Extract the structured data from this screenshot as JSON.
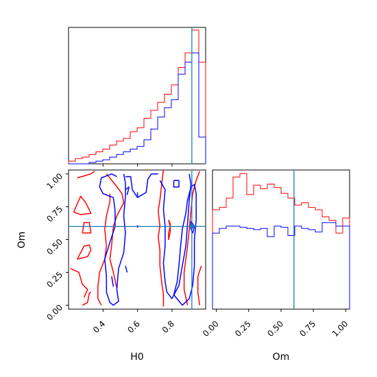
{
  "chart_data": {
    "type": "corner",
    "parameters": [
      "H0",
      "Om"
    ],
    "truth": {
      "H0": 0.915,
      "Om": 0.6,
      "color": "#1f77b4"
    },
    "series_colors": [
      "#ff0000",
      "#0000ff"
    ],
    "hist_H0": {
      "x_range": [
        0.2,
        0.995
      ],
      "bins": 20,
      "series": [
        {
          "color": "#ff0000",
          "values": [
            0.02,
            0.04,
            0.05,
            0.07,
            0.09,
            0.11,
            0.14,
            0.17,
            0.19,
            0.24,
            0.27,
            0.34,
            0.4,
            0.46,
            0.52,
            0.59,
            0.72,
            0.83,
            1.0,
            0.76
          ]
        },
        {
          "color": "#0000ff",
          "values": [
            0.0,
            0.0,
            0.0,
            0.01,
            0.02,
            0.03,
            0.05,
            0.07,
            0.09,
            0.11,
            0.13,
            0.18,
            0.26,
            0.35,
            0.42,
            0.48,
            0.67,
            0.76,
            0.83,
            0.2
          ]
        }
      ]
    },
    "hist_Om": {
      "x_range": [
        -0.03,
        1.03
      ],
      "bins": 20,
      "series": [
        {
          "color": "#ff0000",
          "values": [
            0.85,
            0.87,
            0.95,
            1.13,
            1.16,
            0.98,
            1.06,
            1.03,
            1.07,
            1.04,
            0.99,
            0.95,
            0.89,
            0.91,
            0.87,
            0.85,
            0.79,
            0.76,
            0.65,
            0.78
          ]
        },
        {
          "color": "#0000ff",
          "values": [
            0.65,
            0.69,
            0.71,
            0.71,
            0.7,
            0.69,
            0.68,
            0.69,
            0.62,
            0.71,
            0.7,
            0.63,
            0.71,
            0.69,
            0.68,
            0.66,
            0.74,
            0.74,
            0.71,
            0.71
          ]
        }
      ]
    },
    "contour": {
      "x_range": [
        0.2,
        0.995
      ],
      "y_range": [
        -0.03,
        1.03
      ],
      "series": [
        {
          "color": "#ff0000",
          "paths": [
            [
              [
                0.25,
                0.35
              ],
              [
                0.31,
                0.37
              ],
              [
                0.33,
                0.42
              ],
              [
                0.32,
                0.46
              ],
              [
                0.29,
                0.45
              ],
              [
                0.27,
                0.4
              ],
              [
                0.25,
                0.35
              ]
            ],
            [
              [
                0.28,
                0.55
              ],
              [
                0.33,
                0.55
              ],
              [
                0.32,
                0.63
              ],
              [
                0.29,
                0.63
              ],
              [
                0.28,
                0.55
              ]
            ],
            [
              [
                0.23,
                0.71
              ],
              [
                0.27,
                0.69
              ],
              [
                0.33,
                0.7
              ],
              [
                0.3,
                0.78
              ],
              [
                0.27,
                0.83
              ],
              [
                0.23,
                0.71
              ]
            ],
            [
              [
                0.25,
                0.97
              ],
              [
                0.33,
                1.0
              ],
              [
                0.35,
                1.02
              ]
            ],
            [
              [
                0.21,
                0.28
              ],
              [
                0.26,
                0.25
              ],
              [
                0.28,
                0.16
              ],
              [
                0.31,
                0.12
              ],
              [
                0.29,
                0.06
              ]
            ],
            [
              [
                0.28,
                0.0
              ],
              [
                0.31,
                0.02
              ],
              [
                0.32,
                0.09
              ],
              [
                0.33,
                0.1
              ]
            ],
            [
              [
                0.39,
                0.0
              ],
              [
                0.37,
                0.05
              ],
              [
                0.37,
                0.14
              ],
              [
                0.38,
                0.25
              ],
              [
                0.41,
                0.35
              ],
              [
                0.42,
                0.45
              ],
              [
                0.41,
                0.58
              ],
              [
                0.42,
                0.68
              ],
              [
                0.44,
                0.79
              ],
              [
                0.44,
                0.85
              ]
            ],
            [
              [
                0.42,
                1.0
              ],
              [
                0.47,
                0.92
              ],
              [
                0.51,
                0.85
              ],
              [
                0.52,
                0.78
              ],
              [
                0.48,
                0.68
              ],
              [
                0.46,
                0.6
              ],
              [
                0.45,
                0.46
              ],
              [
                0.44,
                0.35
              ],
              [
                0.46,
                0.25
              ],
              [
                0.48,
                0.13
              ]
            ],
            [
              [
                0.75,
                1.03
              ],
              [
                0.74,
                0.92
              ],
              [
                0.73,
                0.8
              ],
              [
                0.72,
                0.72
              ],
              [
                0.73,
                0.6
              ],
              [
                0.72,
                0.52
              ],
              [
                0.73,
                0.42
              ],
              [
                0.73,
                0.3
              ],
              [
                0.74,
                0.18
              ],
              [
                0.75,
                0.08
              ],
              [
                0.75,
                -0.01
              ]
            ],
            [
              [
                0.78,
                0.65
              ],
              [
                0.79,
                0.6
              ],
              [
                0.78,
                0.55
              ],
              [
                0.78,
                0.5
              ],
              [
                0.79,
                0.56
              ],
              [
                0.79,
                0.62
              ],
              [
                0.78,
                0.65
              ]
            ],
            [
              [
                0.96,
                1.02
              ],
              [
                0.94,
                0.95
              ],
              [
                0.92,
                0.85
              ],
              [
                0.91,
                0.72
              ],
              [
                0.9,
                0.58
              ],
              [
                0.89,
                0.45
              ],
              [
                0.88,
                0.35
              ],
              [
                0.87,
                0.25
              ],
              [
                0.87,
                0.12
              ],
              [
                0.89,
                0.0
              ]
            ],
            [
              [
                0.97,
                0.3
              ],
              [
                0.95,
                0.22
              ],
              [
                0.95,
                0.1
              ],
              [
                0.96,
                0.0
              ]
            ]
          ]
        },
        {
          "color": "#0000ff",
          "paths": [
            [
              [
                0.48,
                0.98
              ],
              [
                0.45,
                1.0
              ],
              [
                0.39,
                0.97
              ],
              [
                0.38,
                0.9
              ],
              [
                0.4,
                0.85
              ],
              [
                0.46,
                0.82
              ],
              [
                0.47,
                0.72
              ],
              [
                0.47,
                0.6
              ],
              [
                0.44,
                0.48
              ],
              [
                0.41,
                0.35
              ],
              [
                0.42,
                0.22
              ],
              [
                0.42,
                0.1
              ],
              [
                0.44,
                0.02
              ],
              [
                0.46,
                0.0
              ],
              [
                0.49,
                0.03
              ],
              [
                0.48,
                0.12
              ],
              [
                0.49,
                0.28
              ],
              [
                0.52,
                0.4
              ],
              [
                0.53,
                0.55
              ],
              [
                0.52,
                0.68
              ],
              [
                0.53,
                0.83
              ],
              [
                0.53,
                0.93
              ],
              [
                0.52,
                1.0
              ]
            ],
            [
              [
                0.53,
                0.98
              ],
              [
                0.56,
                0.98
              ],
              [
                0.57,
                0.88
              ],
              [
                0.6,
                0.82
              ],
              [
                0.65,
                0.86
              ],
              [
                0.66,
                0.96
              ],
              [
                0.68,
                1.0
              ],
              [
                0.72,
                1.0
              ]
            ],
            [
              [
                0.73,
                0.95
              ],
              [
                0.76,
                0.88
              ],
              [
                0.75,
                0.73
              ],
              [
                0.76,
                0.6
              ],
              [
                0.76,
                0.45
              ],
              [
                0.75,
                0.32
              ],
              [
                0.76,
                0.18
              ],
              [
                0.77,
                0.1
              ],
              [
                0.8,
                0.05
              ],
              [
                0.84,
                0.15
              ],
              [
                0.86,
                0.3
              ],
              [
                0.88,
                0.45
              ],
              [
                0.89,
                0.62
              ],
              [
                0.9,
                0.8
              ],
              [
                0.91,
                0.92
              ],
              [
                0.9,
                1.0
              ]
            ],
            [
              [
                0.81,
                0.95
              ],
              [
                0.81,
                0.9
              ],
              [
                0.84,
                0.9
              ],
              [
                0.84,
                0.95
              ],
              [
                0.81,
                0.95
              ]
            ],
            [
              [
                0.81,
                0.08
              ],
              [
                0.83,
                0.18
              ],
              [
                0.84,
                0.3
              ],
              [
                0.85,
                0.45
              ],
              [
                0.86,
                0.58
              ],
              [
                0.88,
                0.7
              ],
              [
                0.89,
                0.8
              ],
              [
                0.91,
                0.9
              ],
              [
                0.93,
                0.92
              ],
              [
                0.94,
                0.85
              ],
              [
                0.94,
                0.65
              ],
              [
                0.93,
                0.5
              ],
              [
                0.93,
                0.3
              ],
              [
                0.92,
                0.15
              ],
              [
                0.9,
                0.05
              ],
              [
                0.86,
                0.0
              ],
              [
                0.81,
                0.08
              ]
            ],
            [
              [
                0.91,
                0.64
              ],
              [
                0.93,
                0.6
              ],
              [
                0.92,
                0.55
              ],
              [
                0.91,
                0.58
              ],
              [
                0.91,
                0.64
              ]
            ],
            [
              [
                0.53,
                0.88
              ],
              [
                0.55,
                0.9
              ],
              [
                0.54,
                0.84
              ]
            ],
            [
              [
                0.6,
                0.86
              ],
              [
                0.6,
                0.83
              ]
            ],
            [
              [
                0.6,
                0.61
              ],
              [
                0.6,
                0.59
              ]
            ],
            [
              [
                0.45,
                0.22
              ],
              [
                0.46,
                0.14
              ]
            ],
            [
              [
                0.53,
                0.3
              ],
              [
                0.54,
                0.25
              ]
            ]
          ]
        }
      ]
    },
    "x_ticks_H0": [
      "0.4",
      "0.6",
      "0.8"
    ],
    "x_tick_values_H0": [
      0.4,
      0.6,
      0.8
    ],
    "y_ticks_Om": [
      "0.00",
      "0.25",
      "0.50",
      "0.75",
      "1.00"
    ],
    "y_tick_values_Om": [
      0.0,
      0.25,
      0.5,
      0.75,
      1.0
    ],
    "x_ticks_Om": [
      "0.00",
      "0.25",
      "0.50",
      "0.75",
      "1.00"
    ],
    "x_tick_values_Om": [
      0.0,
      0.25,
      0.5,
      0.75,
      1.0
    ],
    "xlabel_bottom_left": "H0",
    "xlabel_bottom_right": "Om",
    "ylabel_left": "Om"
  }
}
